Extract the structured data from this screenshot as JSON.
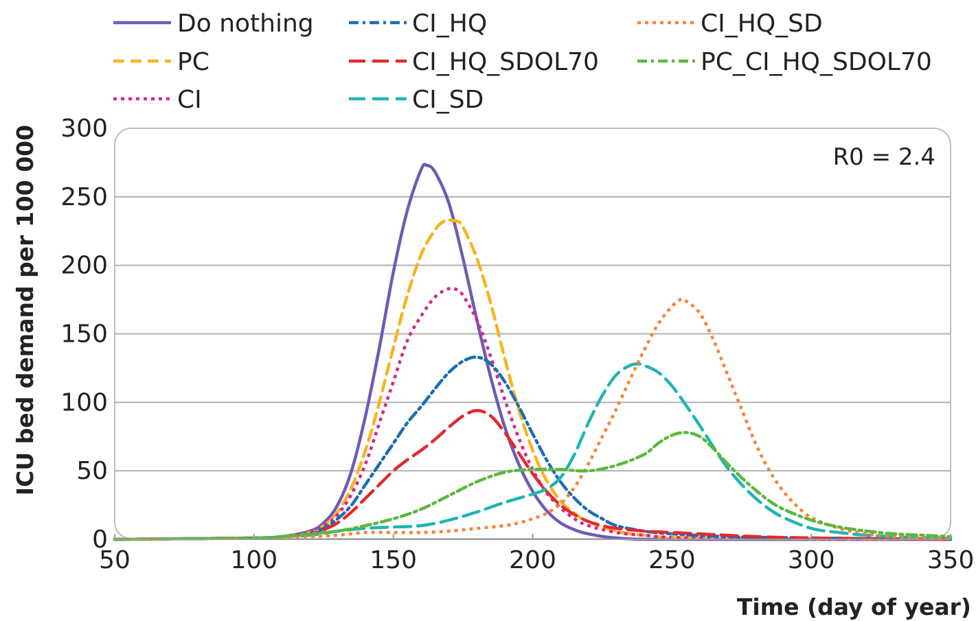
{
  "chart_data": {
    "type": "line",
    "title": "",
    "xlabel": "Time (day of year)",
    "ylabel": "ICU bed demand per 100 000",
    "xlim": [
      50,
      350
    ],
    "ylim": [
      0,
      300
    ],
    "xticks": [
      50,
      100,
      150,
      200,
      250,
      300,
      350
    ],
    "yticks": [
      0,
      50,
      100,
      150,
      200,
      250,
      300
    ],
    "grid": "horizontal",
    "legend_position": "top",
    "annotation": "R0 = 2.4",
    "series": [
      {
        "name": "Do nothing",
        "color": "#6f5bb5",
        "dash": "solid",
        "points": [
          [
            50,
            0
          ],
          [
            100,
            1
          ],
          [
            110,
            2
          ],
          [
            120,
            6
          ],
          [
            125,
            12
          ],
          [
            130,
            25
          ],
          [
            135,
            50
          ],
          [
            140,
            90
          ],
          [
            145,
            140
          ],
          [
            150,
            195
          ],
          [
            155,
            240
          ],
          [
            160,
            270
          ],
          [
            162,
            273
          ],
          [
            165,
            268
          ],
          [
            170,
            245
          ],
          [
            175,
            205
          ],
          [
            180,
            160
          ],
          [
            185,
            118
          ],
          [
            190,
            82
          ],
          [
            195,
            55
          ],
          [
            200,
            35
          ],
          [
            205,
            21
          ],
          [
            210,
            12
          ],
          [
            215,
            7
          ],
          [
            220,
            4
          ],
          [
            230,
            1
          ],
          [
            250,
            0
          ],
          [
            350,
            0
          ]
        ]
      },
      {
        "name": "PC",
        "color": "#f9b320",
        "dash": "dashed",
        "points": [
          [
            50,
            0
          ],
          [
            100,
            1
          ],
          [
            110,
            2
          ],
          [
            120,
            5
          ],
          [
            125,
            10
          ],
          [
            130,
            20
          ],
          [
            135,
            38
          ],
          [
            140,
            65
          ],
          [
            145,
            100
          ],
          [
            150,
            140
          ],
          [
            155,
            178
          ],
          [
            160,
            208
          ],
          [
            165,
            226
          ],
          [
            168,
            232
          ],
          [
            170,
            233
          ],
          [
            173,
            232
          ],
          [
            175,
            228
          ],
          [
            180,
            205
          ],
          [
            185,
            172
          ],
          [
            190,
            132
          ],
          [
            195,
            95
          ],
          [
            200,
            65
          ],
          [
            205,
            43
          ],
          [
            210,
            28
          ],
          [
            215,
            19
          ],
          [
            220,
            13
          ],
          [
            230,
            6
          ],
          [
            240,
            3
          ],
          [
            260,
            1
          ],
          [
            350,
            0
          ]
        ]
      },
      {
        "name": "CI",
        "color": "#d6268a",
        "dash": "dotted",
        "points": [
          [
            50,
            0
          ],
          [
            100,
            1
          ],
          [
            110,
            2
          ],
          [
            120,
            5
          ],
          [
            125,
            10
          ],
          [
            130,
            18
          ],
          [
            135,
            33
          ],
          [
            140,
            55
          ],
          [
            145,
            85
          ],
          [
            150,
            115
          ],
          [
            155,
            145
          ],
          [
            160,
            163
          ],
          [
            165,
            177
          ],
          [
            170,
            183
          ],
          [
            173,
            182
          ],
          [
            175,
            178
          ],
          [
            180,
            160
          ],
          [
            185,
            133
          ],
          [
            190,
            102
          ],
          [
            195,
            74
          ],
          [
            200,
            51
          ],
          [
            205,
            34
          ],
          [
            210,
            23
          ],
          [
            215,
            15
          ],
          [
            220,
            10
          ],
          [
            230,
            5
          ],
          [
            240,
            3
          ],
          [
            260,
            1
          ],
          [
            350,
            0
          ]
        ]
      },
      {
        "name": "CI_HQ",
        "color": "#1c6db5",
        "dash": "dashdot",
        "points": [
          [
            50,
            0
          ],
          [
            100,
            1
          ],
          [
            110,
            2
          ],
          [
            120,
            4
          ],
          [
            125,
            8
          ],
          [
            130,
            15
          ],
          [
            135,
            25
          ],
          [
            140,
            40
          ],
          [
            145,
            55
          ],
          [
            150,
            70
          ],
          [
            155,
            85
          ],
          [
            160,
            97
          ],
          [
            165,
            110
          ],
          [
            170,
            122
          ],
          [
            175,
            130
          ],
          [
            180,
            133
          ],
          [
            185,
            128
          ],
          [
            190,
            115
          ],
          [
            195,
            97
          ],
          [
            200,
            77
          ],
          [
            205,
            58
          ],
          [
            210,
            42
          ],
          [
            215,
            30
          ],
          [
            220,
            21
          ],
          [
            225,
            15
          ],
          [
            230,
            10
          ],
          [
            240,
            6
          ],
          [
            250,
            4
          ],
          [
            270,
            2
          ],
          [
            300,
            1
          ],
          [
            350,
            0
          ]
        ]
      },
      {
        "name": "CI_HQ_SDOL70",
        "color": "#e3292e",
        "dash": "longdash",
        "points": [
          [
            50,
            0
          ],
          [
            100,
            1
          ],
          [
            110,
            2
          ],
          [
            120,
            4
          ],
          [
            125,
            7
          ],
          [
            130,
            12
          ],
          [
            135,
            20
          ],
          [
            140,
            30
          ],
          [
            145,
            40
          ],
          [
            150,
            50
          ],
          [
            155,
            58
          ],
          [
            160,
            65
          ],
          [
            165,
            73
          ],
          [
            170,
            82
          ],
          [
            175,
            90
          ],
          [
            180,
            94
          ],
          [
            185,
            90
          ],
          [
            190,
            78
          ],
          [
            195,
            63
          ],
          [
            200,
            48
          ],
          [
            205,
            35
          ],
          [
            210,
            25
          ],
          [
            215,
            18
          ],
          [
            220,
            13
          ],
          [
            225,
            10
          ],
          [
            230,
            8
          ],
          [
            240,
            6
          ],
          [
            250,
            5
          ],
          [
            260,
            4
          ],
          [
            280,
            2
          ],
          [
            300,
            1
          ],
          [
            350,
            0
          ]
        ]
      },
      {
        "name": "CI_SD",
        "color": "#1fb5b4",
        "dash": "longdash",
        "points": [
          [
            50,
            0
          ],
          [
            100,
            1
          ],
          [
            110,
            2
          ],
          [
            120,
            3
          ],
          [
            130,
            6
          ],
          [
            140,
            8
          ],
          [
            150,
            9
          ],
          [
            160,
            10
          ],
          [
            170,
            14
          ],
          [
            180,
            20
          ],
          [
            190,
            27
          ],
          [
            200,
            33
          ],
          [
            205,
            37
          ],
          [
            210,
            45
          ],
          [
            215,
            62
          ],
          [
            220,
            85
          ],
          [
            225,
            105
          ],
          [
            230,
            120
          ],
          [
            235,
            127
          ],
          [
            238,
            128
          ],
          [
            240,
            127
          ],
          [
            245,
            122
          ],
          [
            250,
            112
          ],
          [
            255,
            98
          ],
          [
            260,
            83
          ],
          [
            265,
            67
          ],
          [
            270,
            52
          ],
          [
            275,
            40
          ],
          [
            280,
            30
          ],
          [
            285,
            22
          ],
          [
            290,
            16
          ],
          [
            300,
            8
          ],
          [
            310,
            5
          ],
          [
            320,
            3
          ],
          [
            340,
            1
          ],
          [
            350,
            1
          ]
        ]
      },
      {
        "name": "CI_HQ_SD",
        "color": "#f6843a",
        "dash": "dotted",
        "points": [
          [
            50,
            0
          ],
          [
            100,
            1
          ],
          [
            120,
            2
          ],
          [
            130,
            3
          ],
          [
            140,
            5
          ],
          [
            150,
            5
          ],
          [
            160,
            5
          ],
          [
            170,
            6
          ],
          [
            180,
            8
          ],
          [
            190,
            10
          ],
          [
            195,
            12
          ],
          [
            200,
            15
          ],
          [
            205,
            19
          ],
          [
            210,
            26
          ],
          [
            215,
            38
          ],
          [
            220,
            55
          ],
          [
            225,
            75
          ],
          [
            230,
            95
          ],
          [
            235,
            117
          ],
          [
            240,
            138
          ],
          [
            245,
            157
          ],
          [
            250,
            170
          ],
          [
            253,
            175
          ],
          [
            255,
            174
          ],
          [
            260,
            165
          ],
          [
            265,
            145
          ],
          [
            270,
            120
          ],
          [
            275,
            95
          ],
          [
            280,
            70
          ],
          [
            285,
            50
          ],
          [
            290,
            35
          ],
          [
            295,
            24
          ],
          [
            300,
            16
          ],
          [
            310,
            8
          ],
          [
            320,
            4
          ],
          [
            330,
            2
          ],
          [
            350,
            1
          ]
        ]
      },
      {
        "name": "PC_CI_HQ_SDOL70",
        "color": "#5cb83d",
        "dash": "dashdot",
        "points": [
          [
            50,
            0
          ],
          [
            100,
            1
          ],
          [
            110,
            2
          ],
          [
            120,
            4
          ],
          [
            130,
            6
          ],
          [
            140,
            10
          ],
          [
            150,
            15
          ],
          [
            160,
            22
          ],
          [
            170,
            32
          ],
          [
            180,
            42
          ],
          [
            190,
            49
          ],
          [
            200,
            51
          ],
          [
            210,
            51
          ],
          [
            220,
            50
          ],
          [
            230,
            54
          ],
          [
            240,
            62
          ],
          [
            245,
            70
          ],
          [
            250,
            76
          ],
          [
            255,
            78
          ],
          [
            260,
            75
          ],
          [
            265,
            66
          ],
          [
            270,
            55
          ],
          [
            275,
            45
          ],
          [
            280,
            36
          ],
          [
            285,
            28
          ],
          [
            290,
            22
          ],
          [
            300,
            14
          ],
          [
            310,
            9
          ],
          [
            320,
            6
          ],
          [
            330,
            4
          ],
          [
            340,
            3
          ],
          [
            350,
            2
          ]
        ]
      }
    ]
  }
}
